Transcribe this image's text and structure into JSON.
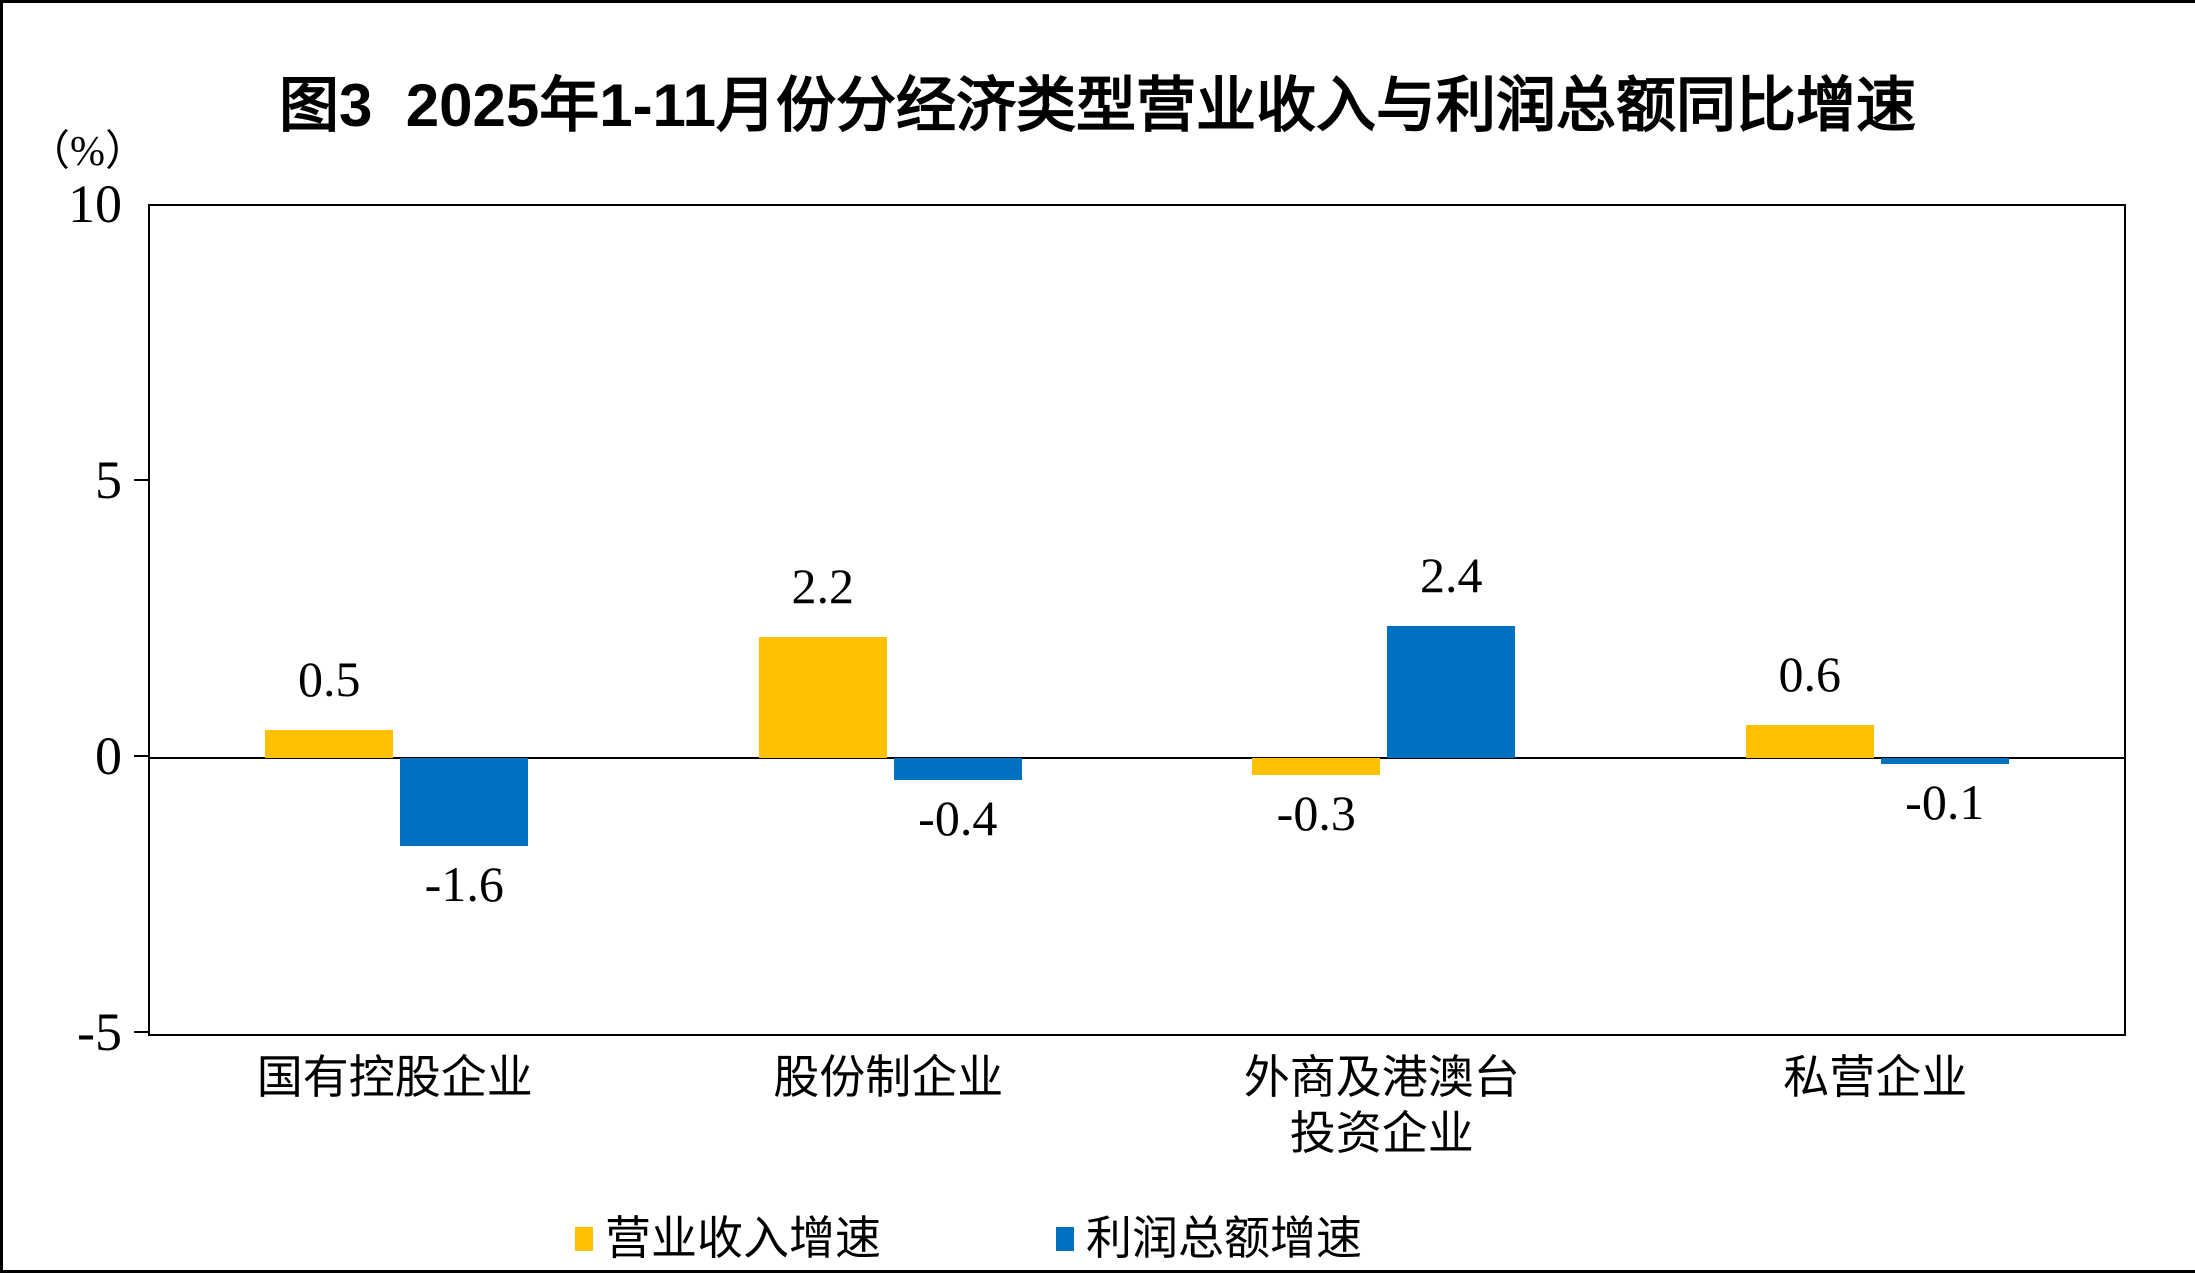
{
  "page": {
    "background": "#FFFFFF",
    "frame_color": "#000000"
  },
  "chart_data": {
    "type": "bar",
    "title": "图3  2025年1-11月份分经济类型营业收入与利润总额同比增速",
    "unit_label": "（%）",
    "categories": [
      [
        "国有控股企业"
      ],
      [
        "股份制企业"
      ],
      [
        "外商及港澳台",
        "投资企业"
      ],
      [
        "私营企业"
      ]
    ],
    "series": [
      {
        "name": "营业收入增速",
        "color": "#FFC000",
        "values": [
          0.5,
          2.2,
          -0.3,
          0.6
        ]
      },
      {
        "name": "利润总额增速",
        "color": "#0070C0",
        "values": [
          -1.6,
          -0.4,
          2.4,
          -0.1
        ]
      }
    ],
    "value_labels": [
      "0.5",
      "2.2",
      "-0.3",
      "0.6",
      "-1.6",
      "-0.4",
      "2.4",
      "-0.1"
    ],
    "ylim": [
      -5,
      10
    ],
    "yticks": [
      10,
      5,
      0,
      -5
    ],
    "grid": false,
    "axis_color": "#000000",
    "legend_position": "bottom"
  }
}
